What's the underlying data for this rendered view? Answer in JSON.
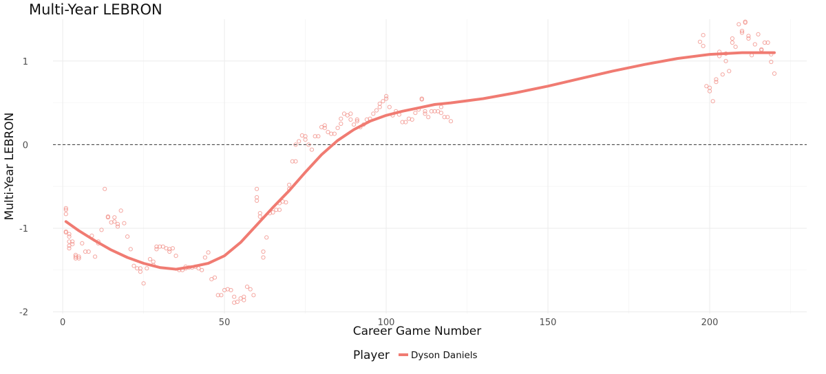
{
  "chart_data": {
    "type": "scatter",
    "title": "Multi-Year LEBRON",
    "xlabel": "Career Game Number",
    "ylabel": "Multi-Year LEBRON",
    "xlim": [
      -3,
      230
    ],
    "ylim": [
      -2.02,
      1.5
    ],
    "x_ticks": [
      0,
      50,
      100,
      150,
      200
    ],
    "y_ticks": [
      -2,
      -1,
      0,
      1
    ],
    "x_tick_labels": [
      "0",
      "50",
      "100",
      "150",
      "200"
    ],
    "y_tick_labels": [
      "-2",
      "-1",
      "0",
      "1"
    ],
    "grid": true,
    "reference_line": {
      "y": 0,
      "style": "dashed",
      "color": "#333333"
    },
    "legend": {
      "title": "Player",
      "position": "bottom",
      "entries": [
        "Dyson Daniels"
      ]
    },
    "series": [
      {
        "name": "Dyson Daniels",
        "color": "#f07b72",
        "points": [
          [
            1,
            -0.76
          ],
          [
            1,
            -0.78
          ],
          [
            1,
            -0.83
          ],
          [
            1,
            -1.04
          ],
          [
            1,
            -1.05
          ],
          [
            2,
            -1.07
          ],
          [
            2,
            -1.1
          ],
          [
            2,
            -1.16
          ],
          [
            2,
            -1.21
          ],
          [
            2,
            -1.24
          ],
          [
            3,
            -1.16
          ],
          [
            3,
            -1.19
          ],
          [
            4,
            -1.32
          ],
          [
            4,
            -1.34
          ],
          [
            4,
            -1.36
          ],
          [
            5,
            -1.34
          ],
          [
            5,
            -1.36
          ],
          [
            6,
            -1.18
          ],
          [
            7,
            -1.28
          ],
          [
            8,
            -1.28
          ],
          [
            9,
            -1.09
          ],
          [
            10,
            -1.34
          ],
          [
            11,
            -1.16
          ],
          [
            11,
            -1.18
          ],
          [
            12,
            -1.02
          ],
          [
            13,
            -0.53
          ],
          [
            14,
            -0.86
          ],
          [
            14,
            -0.87
          ],
          [
            15,
            -0.93
          ],
          [
            16,
            -0.92
          ],
          [
            16,
            -0.87
          ],
          [
            17,
            -0.95
          ],
          [
            17,
            -0.98
          ],
          [
            18,
            -0.79
          ],
          [
            19,
            -0.94
          ],
          [
            20,
            -1.1
          ],
          [
            21,
            -1.25
          ],
          [
            22,
            -1.45
          ],
          [
            23,
            -1.48
          ],
          [
            24,
            -1.52
          ],
          [
            24,
            -1.48
          ],
          [
            25,
            -1.66
          ],
          [
            26,
            -1.48
          ],
          [
            27,
            -1.37
          ],
          [
            28,
            -1.4
          ],
          [
            28,
            -1.44
          ],
          [
            29,
            -1.22
          ],
          [
            29,
            -1.25
          ],
          [
            30,
            -1.22
          ],
          [
            31,
            -1.22
          ],
          [
            32,
            -1.24
          ],
          [
            33,
            -1.25
          ],
          [
            33,
            -1.28
          ],
          [
            34,
            -1.24
          ],
          [
            35,
            -1.33
          ],
          [
            36,
            -1.5
          ],
          [
            37,
            -1.5
          ],
          [
            38,
            -1.46
          ],
          [
            38,
            -1.48
          ],
          [
            39,
            -1.47
          ],
          [
            40,
            -1.47
          ],
          [
            41,
            -1.46
          ],
          [
            42,
            -1.48
          ],
          [
            43,
            -1.5
          ],
          [
            44,
            -1.35
          ],
          [
            45,
            -1.29
          ],
          [
            46,
            -1.61
          ],
          [
            47,
            -1.59
          ],
          [
            48,
            -1.8
          ],
          [
            49,
            -1.8
          ],
          [
            50,
            -1.74
          ],
          [
            51,
            -1.73
          ],
          [
            52,
            -1.74
          ],
          [
            53,
            -1.82
          ],
          [
            53,
            -1.89
          ],
          [
            54,
            -1.88
          ],
          [
            55,
            -1.84
          ],
          [
            56,
            -1.86
          ],
          [
            56,
            -1.82
          ],
          [
            57,
            -1.7
          ],
          [
            58,
            -1.73
          ],
          [
            59,
            -1.8
          ],
          [
            60,
            -0.53
          ],
          [
            60,
            -0.63
          ],
          [
            60,
            -0.67
          ],
          [
            61,
            -0.82
          ],
          [
            61,
            -0.86
          ],
          [
            62,
            -1.28
          ],
          [
            62,
            -1.35
          ],
          [
            63,
            -1.11
          ],
          [
            64,
            -0.82
          ],
          [
            65,
            -0.81
          ],
          [
            66,
            -0.78
          ],
          [
            67,
            -0.78
          ],
          [
            67,
            -0.7
          ],
          [
            68,
            -0.68
          ],
          [
            69,
            -0.69
          ],
          [
            70,
            -0.53
          ],
          [
            70,
            -0.48
          ],
          [
            71,
            -0.2
          ],
          [
            72,
            -0.2
          ],
          [
            72,
            0.0
          ],
          [
            73,
            0.04
          ],
          [
            74,
            0.11
          ],
          [
            75,
            0.1
          ],
          [
            75,
            0.06
          ],
          [
            76,
            0.0
          ],
          [
            77,
            -0.06
          ],
          [
            78,
            0.1
          ],
          [
            79,
            0.1
          ],
          [
            80,
            0.21
          ],
          [
            81,
            0.23
          ],
          [
            81,
            0.2
          ],
          [
            82,
            0.15
          ],
          [
            83,
            0.13
          ],
          [
            84,
            0.13
          ],
          [
            85,
            0.2
          ],
          [
            86,
            0.31
          ],
          [
            86,
            0.25
          ],
          [
            87,
            0.37
          ],
          [
            88,
            0.35
          ],
          [
            89,
            0.37
          ],
          [
            89,
            0.3
          ],
          [
            90,
            0.24
          ],
          [
            91,
            0.28
          ],
          [
            91,
            0.3
          ],
          [
            92,
            0.21
          ],
          [
            93,
            0.24
          ],
          [
            94,
            0.3
          ],
          [
            95,
            0.31
          ],
          [
            96,
            0.37
          ],
          [
            97,
            0.41
          ],
          [
            98,
            0.45
          ],
          [
            98,
            0.49
          ],
          [
            99,
            0.52
          ],
          [
            100,
            0.55
          ],
          [
            100,
            0.58
          ],
          [
            101,
            0.45
          ],
          [
            102,
            0.35
          ],
          [
            103,
            0.4
          ],
          [
            104,
            0.36
          ],
          [
            105,
            0.27
          ],
          [
            106,
            0.27
          ],
          [
            107,
            0.31
          ],
          [
            108,
            0.3
          ],
          [
            109,
            0.38
          ],
          [
            110,
            0.42
          ],
          [
            111,
            0.55
          ],
          [
            111,
            0.54
          ],
          [
            112,
            0.4
          ],
          [
            112,
            0.37
          ],
          [
            113,
            0.33
          ],
          [
            114,
            0.4
          ],
          [
            115,
            0.4
          ],
          [
            116,
            0.4
          ],
          [
            117,
            0.38
          ],
          [
            117,
            0.45
          ],
          [
            118,
            0.33
          ],
          [
            119,
            0.33
          ],
          [
            120,
            0.28
          ],
          [
            197,
            1.23
          ],
          [
            198,
            1.31
          ],
          [
            198,
            1.18
          ],
          [
            199,
            0.7
          ],
          [
            200,
            0.68
          ],
          [
            200,
            0.64
          ],
          [
            201,
            0.52
          ],
          [
            202,
            0.75
          ],
          [
            202,
            0.78
          ],
          [
            203,
            1.11
          ],
          [
            203,
            1.06
          ],
          [
            204,
            0.84
          ],
          [
            205,
            1.0
          ],
          [
            205,
            1.09
          ],
          [
            206,
            0.88
          ],
          [
            207,
            1.22
          ],
          [
            207,
            1.27
          ],
          [
            208,
            1.17
          ],
          [
            209,
            1.44
          ],
          [
            210,
            1.36
          ],
          [
            210,
            1.34
          ],
          [
            211,
            1.47
          ],
          [
            211,
            1.46
          ],
          [
            212,
            1.3
          ],
          [
            212,
            1.27
          ],
          [
            213,
            1.07
          ],
          [
            214,
            1.2
          ],
          [
            215,
            1.32
          ],
          [
            216,
            1.14
          ],
          [
            216,
            1.13
          ],
          [
            217,
            1.22
          ],
          [
            218,
            1.22
          ],
          [
            219,
            1.08
          ],
          [
            219,
            0.99
          ],
          [
            220,
            0.85
          ]
        ],
        "smooth": [
          [
            1,
            -0.92
          ],
          [
            5,
            -1.03
          ],
          [
            10,
            -1.15
          ],
          [
            15,
            -1.26
          ],
          [
            20,
            -1.35
          ],
          [
            25,
            -1.42
          ],
          [
            30,
            -1.47
          ],
          [
            35,
            -1.49
          ],
          [
            40,
            -1.46
          ],
          [
            45,
            -1.42
          ],
          [
            50,
            -1.33
          ],
          [
            55,
            -1.17
          ],
          [
            60,
            -0.96
          ],
          [
            65,
            -0.75
          ],
          [
            70,
            -0.55
          ],
          [
            75,
            -0.33
          ],
          [
            80,
            -0.12
          ],
          [
            85,
            0.05
          ],
          [
            90,
            0.18
          ],
          [
            95,
            0.28
          ],
          [
            100,
            0.35
          ],
          [
            105,
            0.4
          ],
          [
            110,
            0.44
          ],
          [
            115,
            0.48
          ],
          [
            120,
            0.5
          ],
          [
            130,
            0.55
          ],
          [
            140,
            0.62
          ],
          [
            150,
            0.7
          ],
          [
            160,
            0.79
          ],
          [
            170,
            0.88
          ],
          [
            180,
            0.96
          ],
          [
            190,
            1.03
          ],
          [
            200,
            1.08
          ],
          [
            210,
            1.1
          ],
          [
            220,
            1.1
          ]
        ]
      }
    ]
  }
}
